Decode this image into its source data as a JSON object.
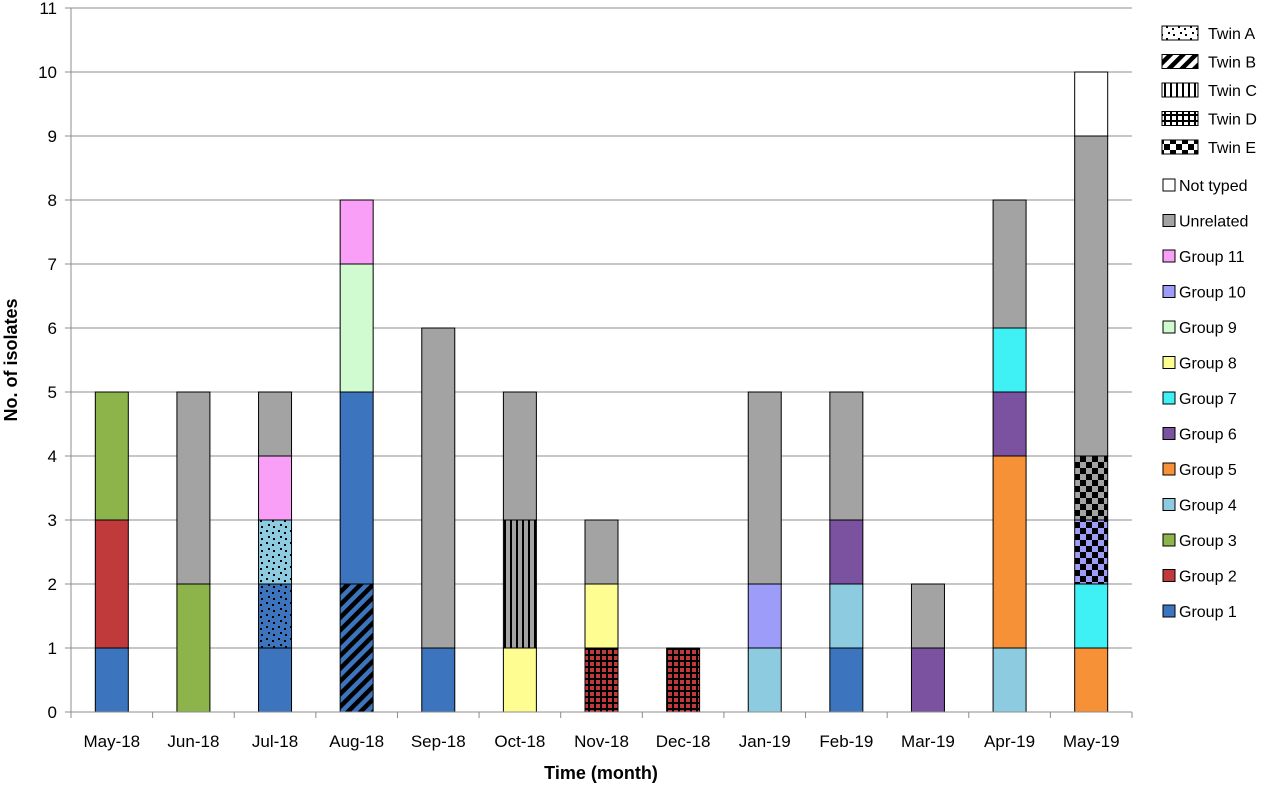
{
  "chart_data": {
    "type": "bar",
    "stacked": true,
    "title": "",
    "xlabel": "Time (month)",
    "ylabel": "No. of isolates",
    "ylim": [
      0,
      11
    ],
    "yticks": [
      0,
      1,
      2,
      3,
      4,
      5,
      6,
      7,
      8,
      9,
      10,
      11
    ],
    "grid": true,
    "legend_position": "right",
    "categories": [
      "May-18",
      "Jun-18",
      "Jul-18",
      "Aug-18",
      "Sep-18",
      "Oct-18",
      "Nov-18",
      "Dec-18",
      "Jan-19",
      "Feb-19",
      "Mar-19",
      "Apr-19",
      "May-19"
    ],
    "groups": [
      {
        "name": "Group 1",
        "color": "#3c74bd"
      },
      {
        "name": "Group 2",
        "color": "#c0393b"
      },
      {
        "name": "Group 3",
        "color": "#8db44a"
      },
      {
        "name": "Group 4",
        "color": "#8ccbe0"
      },
      {
        "name": "Group 5",
        "color": "#f79138"
      },
      {
        "name": "Group 6",
        "color": "#7a52a0"
      },
      {
        "name": "Group 7",
        "color": "#3ff0f4"
      },
      {
        "name": "Group 8",
        "color": "#fdfd91"
      },
      {
        "name": "Group 9",
        "color": "#d0fad0"
      },
      {
        "name": "Group 10",
        "color": "#9d9cf9"
      },
      {
        "name": "Group 11",
        "color": "#fa9ff7"
      },
      {
        "name": "Unrelated",
        "color": "#a3a3a3"
      },
      {
        "name": "Not typed",
        "color": "#ffffff"
      }
    ],
    "twins": [
      {
        "name": "Twin A",
        "pattern": "dots"
      },
      {
        "name": "Twin B",
        "pattern": "diagonal"
      },
      {
        "name": "Twin C",
        "pattern": "vertical"
      },
      {
        "name": "Twin D",
        "pattern": "grid"
      },
      {
        "name": "Twin E",
        "pattern": "checker"
      }
    ],
    "stacks": [
      [
        {
          "group": "Group 1",
          "value": 1
        },
        {
          "group": "Group 2",
          "value": 2
        },
        {
          "group": "Group 3",
          "value": 2
        }
      ],
      [
        {
          "group": "Group 3",
          "value": 2
        },
        {
          "group": "Unrelated",
          "value": 3
        }
      ],
      [
        {
          "group": "Group 1",
          "value": 1
        },
        {
          "group": "Group 1",
          "twin": "Twin A",
          "value": 1
        },
        {
          "group": "Group 4",
          "twin": "Twin A",
          "value": 1
        },
        {
          "group": "Group 11",
          "value": 1
        },
        {
          "group": "Unrelated",
          "value": 1
        }
      ],
      [
        {
          "group": "Group 1",
          "twin": "Twin B",
          "value": 2
        },
        {
          "group": "Group 1",
          "value": 3
        },
        {
          "group": "Group 9",
          "value": 2
        },
        {
          "group": "Group 11",
          "value": 1
        }
      ],
      [
        {
          "group": "Group 1",
          "value": 1
        },
        {
          "group": "Unrelated",
          "value": 5
        }
      ],
      [
        {
          "group": "Group 8",
          "value": 1
        },
        {
          "group": "Unrelated",
          "twin": "Twin C",
          "value": 2
        },
        {
          "group": "Unrelated",
          "value": 2
        }
      ],
      [
        {
          "group": "Group 2",
          "twin": "Twin D",
          "value": 1
        },
        {
          "group": "Group 8",
          "value": 1
        },
        {
          "group": "Unrelated",
          "value": 1
        }
      ],
      [
        {
          "group": "Group 2",
          "twin": "Twin D",
          "value": 1
        }
      ],
      [
        {
          "group": "Group 4",
          "value": 1
        },
        {
          "group": "Group 10",
          "value": 1
        },
        {
          "group": "Unrelated",
          "value": 3
        }
      ],
      [
        {
          "group": "Group 1",
          "value": 1
        },
        {
          "group": "Group 4",
          "value": 1
        },
        {
          "group": "Group 6",
          "value": 1
        },
        {
          "group": "Unrelated",
          "value": 2
        }
      ],
      [
        {
          "group": "Group 6",
          "value": 1
        },
        {
          "group": "Unrelated",
          "value": 1
        }
      ],
      [
        {
          "group": "Group 4",
          "value": 1
        },
        {
          "group": "Group 5",
          "value": 3
        },
        {
          "group": "Group 6",
          "value": 1
        },
        {
          "group": "Group 7",
          "value": 1
        },
        {
          "group": "Unrelated",
          "value": 2
        }
      ],
      [
        {
          "group": "Group 5",
          "value": 1
        },
        {
          "group": "Group 7",
          "value": 1
        },
        {
          "group": "Group 10",
          "twin": "Twin E",
          "value": 1
        },
        {
          "group": "Unrelated",
          "twin": "Twin E",
          "value": 1
        },
        {
          "group": "Unrelated",
          "value": 5
        },
        {
          "group": "Not typed",
          "value": 1
        }
      ]
    ]
  }
}
